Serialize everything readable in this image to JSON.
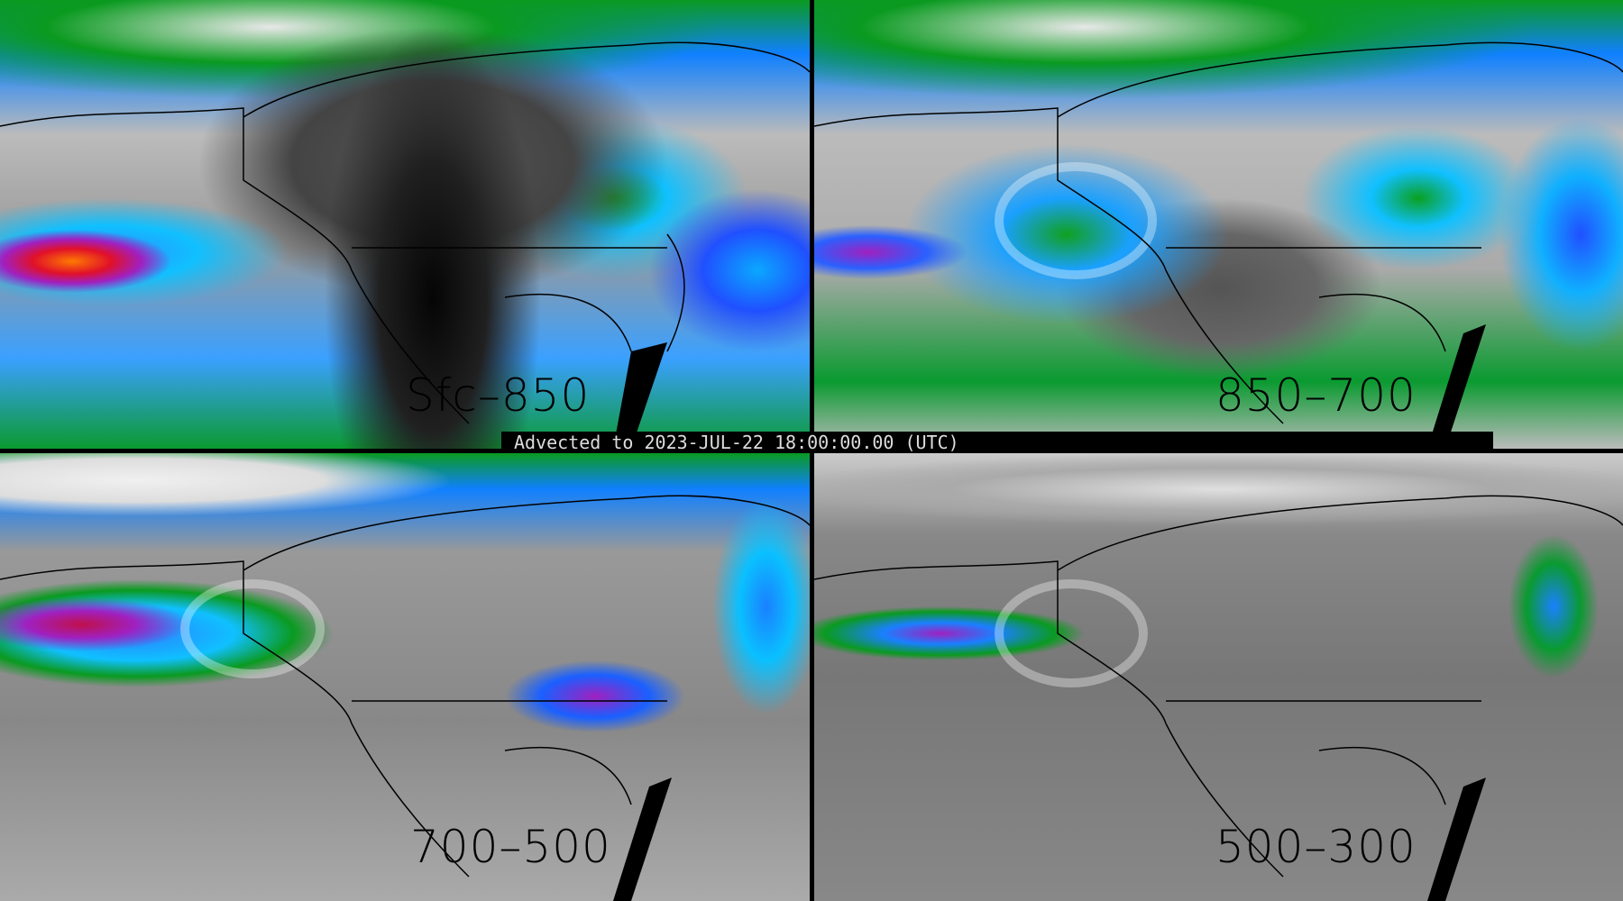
{
  "banner": {
    "text": "Advected to 2023-JUL-22 18:00:00.00 (UTC)"
  },
  "panels": [
    {
      "label": "Sfc–850"
    },
    {
      "label": "850–700"
    },
    {
      "label": "700–500"
    },
    {
      "label": "500–300"
    }
  ],
  "colors": {
    "background": "#000000",
    "low": "#808080",
    "mid": "#0a9a20",
    "high": "#10c0ff",
    "higher": "#a020c0",
    "max": "#ff7a00"
  }
}
